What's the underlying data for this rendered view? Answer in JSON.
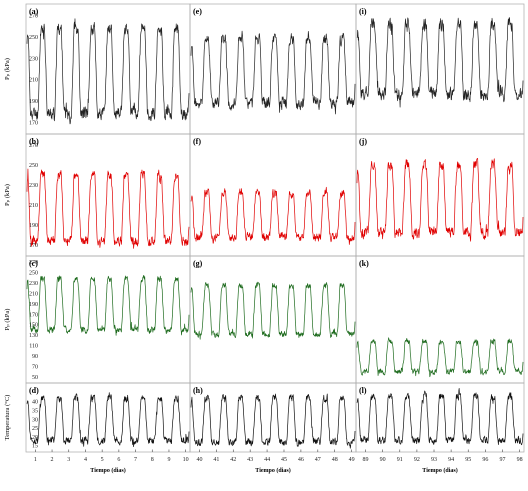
{
  "chart_data": {
    "type": "line",
    "layout": "4 rows x 3 columns of small-multiple time series",
    "grid": false,
    "legend": "none",
    "colors": {
      "row1": "#222222",
      "row2": "#e00000",
      "row3": "#1e6b1e",
      "row4": "#111111",
      "axes": "#aaaaaa"
    },
    "columns": [
      {
        "xlabel": "Tiempo (dias)",
        "xticks": [
          "1",
          "2",
          "3",
          "4",
          "5",
          "6",
          "7",
          "8",
          "9",
          "10"
        ],
        "xlim": [
          0.5,
          10.2
        ]
      },
      {
        "xlabel": "Tiempo (dias)",
        "xticks": [
          "40",
          "41",
          "42",
          "43",
          "44",
          "45",
          "46",
          "47",
          "48",
          "49"
        ],
        "xlim": [
          39.5,
          49.2
        ]
      },
      {
        "xlabel": "Tiempo (dias)",
        "xticks": [
          "89",
          "90",
          "91",
          "92",
          "93",
          "94",
          "95",
          "96",
          "97",
          "98"
        ],
        "xlim": [
          88.5,
          98.2
        ]
      }
    ],
    "rows": [
      {
        "ylabel": "Pₚ (kPa)",
        "yticks": [
          "270",
          "250",
          "230",
          "210",
          "190",
          "170"
        ],
        "ylim": [
          160,
          280
        ]
      },
      {
        "ylabel": "Pₚ (kPa)",
        "yticks": [
          "270",
          "250",
          "230",
          "210",
          "190",
          "170"
        ],
        "ylim": [
          160,
          280
        ]
      },
      {
        "ylabel": "Pₚ (kPa)",
        "yticks": [
          "270",
          "250",
          "230",
          "210",
          "190",
          "170",
          "150",
          "130",
          "110",
          "90",
          "70",
          "50"
        ],
        "ylim": [
          40,
          280
        ]
      },
      {
        "ylabel": "Temperatura (°C)",
        "yticks": [
          "40",
          "35",
          "30",
          "25",
          "20",
          "15"
        ],
        "ylim": [
          12,
          50
        ]
      }
    ],
    "series": [
      {
        "panel": "(a)",
        "row": 0,
        "col": 0,
        "min": 178,
        "max": 258,
        "noise": 9
      },
      {
        "panel": "(e)",
        "row": 0,
        "col": 1,
        "min": 188,
        "max": 248,
        "noise": 8
      },
      {
        "panel": "(i)",
        "row": 0,
        "col": 2,
        "min": 196,
        "max": 262,
        "noise": 9
      },
      {
        "panel": "(b)",
        "row": 1,
        "col": 0,
        "min": 174,
        "max": 240,
        "noise": 7
      },
      {
        "panel": "(f)",
        "row": 1,
        "col": 1,
        "min": 178,
        "max": 222,
        "noise": 6
      },
      {
        "panel": "(j)",
        "row": 1,
        "col": 2,
        "min": 182,
        "max": 250,
        "noise": 8
      },
      {
        "panel": "(c)",
        "row": 2,
        "col": 0,
        "min": 140,
        "max": 238,
        "noise": 9
      },
      {
        "panel": "(g)",
        "row": 2,
        "col": 1,
        "min": 132,
        "max": 226,
        "noise": 8
      },
      {
        "panel": "(k)",
        "row": 2,
        "col": 2,
        "min": 60,
        "max": 118,
        "noise": 8
      },
      {
        "panel": "(d)",
        "row": 3,
        "col": 0,
        "min": 18,
        "max": 42,
        "noise": 3
      },
      {
        "panel": "(h)",
        "row": 3,
        "col": 1,
        "min": 17,
        "max": 42,
        "noise": 3
      },
      {
        "panel": "(l)",
        "row": 3,
        "col": 2,
        "min": 18,
        "max": 43,
        "noise": 3
      }
    ]
  }
}
